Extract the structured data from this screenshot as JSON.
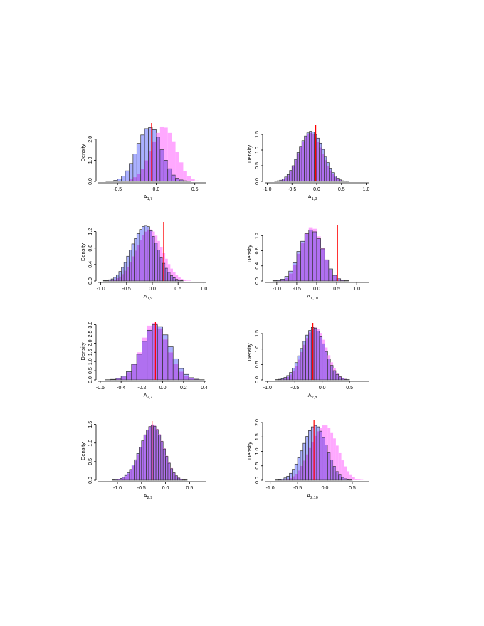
{
  "colors": {
    "blue": "#aab0ff",
    "pink": "#ffa8ff",
    "overlap": "#b070f0",
    "truth": "#ff0000",
    "axis": "#000000",
    "edge": "#333333"
  },
  "chart_data": [
    {
      "type": "bar",
      "xlabel": "A",
      "xlabel_sub": "1,7",
      "ylabel": "Density",
      "xlim": [
        -0.75,
        0.65
      ],
      "ylim": [
        0,
        2.7
      ],
      "xticks": [
        -0.5,
        0.0,
        0.5
      ],
      "xtick_labels": [
        "-0.5",
        "0.0",
        "0.5"
      ],
      "yticks": [
        0.0,
        1.0,
        2.0
      ],
      "ytick_labels": [
        "0.0",
        "1.0",
        "2.0"
      ],
      "bin_width": 0.05,
      "bin_start": -0.65,
      "series": [
        {
          "color": "blue",
          "values": [
            0.01,
            0.02,
            0.05,
            0.12,
            0.25,
            0.5,
            0.85,
            1.3,
            1.8,
            2.2,
            2.5,
            2.55,
            2.45,
            2.1,
            1.5,
            1.0,
            0.6,
            0.3,
            0.15,
            0.07,
            0.03,
            0.01,
            0.0,
            0.0,
            0.0,
            0.0
          ]
        },
        {
          "color": "pink",
          "values": [
            0.0,
            0.0,
            0.0,
            0.0,
            0.02,
            0.04,
            0.1,
            0.2,
            0.35,
            0.6,
            1.0,
            1.45,
            1.9,
            2.3,
            2.6,
            2.55,
            2.3,
            1.9,
            1.4,
            0.9,
            0.5,
            0.25,
            0.1,
            0.04,
            0.01,
            0.0
          ]
        }
      ],
      "truth": -0.06
    },
    {
      "type": "bar",
      "xlabel": "A",
      "xlabel_sub": "1,8",
      "ylabel": "Density",
      "xlim": [
        -1.05,
        1.05
      ],
      "ylim": [
        0,
        1.75
      ],
      "xticks": [
        -1.0,
        -0.5,
        0.0,
        0.5,
        1.0
      ],
      "xtick_labels": [
        "-1.0",
        "-0.5",
        "0.0",
        "0.5",
        "1.0"
      ],
      "yticks": [
        0.0,
        0.5,
        1.0,
        1.5
      ],
      "ytick_labels": [
        "0.0",
        "0.5",
        "1.0",
        "1.5"
      ],
      "bin_width": 0.05,
      "bin_start": -0.85,
      "series": [
        {
          "color": "blue",
          "values": [
            0.01,
            0.02,
            0.04,
            0.08,
            0.14,
            0.22,
            0.35,
            0.5,
            0.7,
            0.92,
            1.12,
            1.3,
            1.45,
            1.55,
            1.6,
            1.58,
            1.5,
            1.38,
            1.22,
            1.02,
            0.8,
            0.6,
            0.42,
            0.28,
            0.17,
            0.1,
            0.05,
            0.02,
            0.01,
            0.01,
            0.0,
            0.0
          ]
        },
        {
          "color": "pink",
          "values": [
            0.01,
            0.02,
            0.03,
            0.06,
            0.12,
            0.2,
            0.32,
            0.48,
            0.68,
            0.9,
            1.1,
            1.28,
            1.42,
            1.52,
            1.55,
            1.5,
            1.4,
            1.25,
            1.08,
            0.88,
            0.68,
            0.5,
            0.35,
            0.23,
            0.14,
            0.08,
            0.04,
            0.02,
            0.01,
            0.0,
            0.0,
            0.0
          ]
        }
      ],
      "truth": -0.02
    },
    {
      "type": "bar",
      "xlabel": "A",
      "xlabel_sub": "1,9",
      "ylabel": "Density",
      "xlim": [
        -1.05,
        1.05
      ],
      "ylim": [
        0,
        1.4
      ],
      "xticks": [
        -1.0,
        -0.5,
        0.0,
        0.5,
        1.0
      ],
      "xtick_labels": [
        "-1.0",
        "-0.5",
        "0.0",
        "0.5",
        "1.0"
      ],
      "yticks": [
        0.0,
        0.4,
        0.8,
        1.2
      ],
      "ytick_labels": [
        "0.0",
        "0.4",
        "0.8",
        "1.2"
      ],
      "bin_width": 0.05,
      "bin_start": -0.95,
      "series": [
        {
          "color": "blue",
          "values": [
            0.01,
            0.01,
            0.03,
            0.05,
            0.09,
            0.15,
            0.23,
            0.33,
            0.45,
            0.6,
            0.75,
            0.9,
            1.03,
            1.15,
            1.25,
            1.32,
            1.35,
            1.32,
            1.22,
            1.08,
            0.92,
            0.75,
            0.58,
            0.43,
            0.31,
            0.21,
            0.13,
            0.08,
            0.04,
            0.02,
            0.01,
            0.0,
            0.0,
            0.0,
            0.0,
            0.0
          ]
        },
        {
          "color": "pink",
          "values": [
            0.0,
            0.0,
            0.01,
            0.02,
            0.04,
            0.07,
            0.11,
            0.17,
            0.25,
            0.35,
            0.47,
            0.6,
            0.74,
            0.88,
            1.0,
            1.12,
            1.2,
            1.25,
            1.25,
            1.2,
            1.1,
            0.97,
            0.83,
            0.68,
            0.54,
            0.41,
            0.3,
            0.21,
            0.14,
            0.09,
            0.05,
            0.03,
            0.01,
            0.01,
            0.0,
            0.0
          ]
        }
      ],
      "truth": 0.22
    },
    {
      "type": "bar",
      "xlabel": "A",
      "xlabel_sub": "1,10",
      "ylabel": "Density",
      "xlim": [
        -1.3,
        1.3
      ],
      "ylim": [
        0,
        1.45
      ],
      "xticks": [
        -1.0,
        -0.5,
        0.0,
        0.5,
        1.0
      ],
      "xtick_labels": [
        "-1.0",
        "-0.5",
        "0.0",
        "0.5",
        "1.0"
      ],
      "yticks": [
        0.0,
        0.4,
        0.8,
        1.2
      ],
      "ytick_labels": [
        "0.0",
        "0.4",
        "0.8",
        "1.2"
      ],
      "bin_width": 0.1,
      "bin_start": -1.1,
      "series": [
        {
          "color": "blue",
          "values": [
            0.01,
            0.02,
            0.05,
            0.12,
            0.26,
            0.48,
            0.78,
            1.05,
            1.25,
            1.35,
            1.3,
            1.12,
            0.85,
            0.56,
            0.32,
            0.15,
            0.06,
            0.02,
            0.01,
            0.0,
            0.0,
            0.0
          ]
        },
        {
          "color": "pink",
          "values": [
            0.0,
            0.01,
            0.03,
            0.08,
            0.2,
            0.42,
            0.72,
            1.02,
            1.28,
            1.42,
            1.38,
            1.18,
            0.88,
            0.56,
            0.3,
            0.14,
            0.05,
            0.02,
            0.01,
            0.0,
            0.0,
            0.0
          ]
        }
      ],
      "truth": 0.52
    },
    {
      "type": "bar",
      "xlabel": "A",
      "xlabel_sub": "2,7",
      "ylabel": "Density",
      "xlim": [
        -0.62,
        0.42
      ],
      "ylim": [
        0,
        3.1
      ],
      "xticks": [
        -0.6,
        -0.4,
        -0.2,
        0.0,
        0.2,
        0.4
      ],
      "xtick_labels": [
        "-0.6",
        "-0.4",
        "-0.2",
        "0.0",
        "0.2",
        "0.4"
      ],
      "yticks": [
        0.0,
        0.5,
        1.0,
        1.5,
        2.0,
        2.5,
        3.0
      ],
      "ytick_labels": [
        "0.0",
        "0.5",
        "1.0",
        "1.5",
        "2.0",
        "2.5",
        "3.0"
      ],
      "bin_width": 0.05,
      "bin_start": -0.55,
      "series": [
        {
          "color": "blue",
          "values": [
            0.01,
            0.03,
            0.08,
            0.2,
            0.45,
            0.85,
            1.4,
            2.1,
            2.7,
            3.0,
            2.9,
            2.45,
            1.8,
            1.15,
            0.62,
            0.3,
            0.12,
            0.04,
            0.01,
            0.0
          ]
        },
        {
          "color": "pink",
          "values": [
            0.0,
            0.02,
            0.06,
            0.17,
            0.42,
            0.85,
            1.5,
            2.3,
            2.95,
            3.1,
            2.8,
            2.2,
            1.5,
            0.88,
            0.45,
            0.2,
            0.08,
            0.03,
            0.01,
            0.0
          ]
        }
      ],
      "truth": -0.07
    },
    {
      "type": "bar",
      "xlabel": "A",
      "xlabel_sub": "2,8",
      "ylabel": "Density",
      "xlim": [
        -1.05,
        0.85
      ],
      "ylim": [
        0,
        1.8
      ],
      "xticks": [
        -1.0,
        -0.5,
        0.0,
        0.5
      ],
      "xtick_labels": [
        "-1.0",
        "-0.5",
        "0.0",
        "0.5"
      ],
      "yticks": [
        0.0,
        0.5,
        1.0,
        1.5
      ],
      "ytick_labels": [
        "0.0",
        "0.5",
        "1.0",
        "1.5"
      ],
      "bin_width": 0.05,
      "bin_start": -0.85,
      "series": [
        {
          "color": "blue",
          "values": [
            0.01,
            0.02,
            0.04,
            0.08,
            0.14,
            0.24,
            0.38,
            0.56,
            0.78,
            1.02,
            1.25,
            1.45,
            1.6,
            1.7,
            1.68,
            1.58,
            1.4,
            1.17,
            0.92,
            0.68,
            0.47,
            0.3,
            0.18,
            0.1,
            0.05,
            0.02,
            0.01,
            0.0,
            0.0,
            0.0
          ]
        },
        {
          "color": "pink",
          "values": [
            0.0,
            0.01,
            0.02,
            0.05,
            0.1,
            0.18,
            0.3,
            0.46,
            0.66,
            0.9,
            1.14,
            1.36,
            1.54,
            1.66,
            1.7,
            1.66,
            1.52,
            1.3,
            1.05,
            0.8,
            0.57,
            0.38,
            0.23,
            0.13,
            0.07,
            0.03,
            0.01,
            0.0,
            0.0,
            0.0
          ]
        }
      ],
      "truth": -0.17
    },
    {
      "type": "bar",
      "xlabel": "A",
      "xlabel_sub": "2,9",
      "ylabel": "Density",
      "xlim": [
        -1.4,
        0.85
      ],
      "ylim": [
        0,
        1.55
      ],
      "xticks": [
        -1.0,
        -0.5,
        0.0,
        0.5
      ],
      "xtick_labels": [
        "-1.0",
        "-0.5",
        "0.0",
        "0.5"
      ],
      "yticks": [
        0.0,
        0.5,
        1.0,
        1.5
      ],
      "ytick_labels": [
        "0.0",
        "0.5",
        "1.0",
        "1.5"
      ],
      "bin_width": 0.05,
      "bin_start": -1.1,
      "series": [
        {
          "color": "blue",
          "values": [
            0.01,
            0.02,
            0.03,
            0.05,
            0.08,
            0.13,
            0.2,
            0.29,
            0.41,
            0.55,
            0.72,
            0.89,
            1.06,
            1.22,
            1.35,
            1.44,
            1.48,
            1.45,
            1.36,
            1.22,
            1.04,
            0.84,
            0.64,
            0.46,
            0.31,
            0.2,
            0.12,
            0.06,
            0.03,
            0.01,
            0.01,
            0.0,
            0.0,
            0.0,
            0.0
          ]
        },
        {
          "color": "pink",
          "values": [
            0.0,
            0.01,
            0.02,
            0.04,
            0.07,
            0.11,
            0.18,
            0.27,
            0.39,
            0.53,
            0.7,
            0.88,
            1.06,
            1.22,
            1.36,
            1.45,
            1.5,
            1.47,
            1.38,
            1.24,
            1.06,
            0.86,
            0.66,
            0.48,
            0.33,
            0.21,
            0.13,
            0.07,
            0.04,
            0.02,
            0.01,
            0.0,
            0.0,
            0.0,
            0.0
          ]
        }
      ],
      "truth": -0.28
    },
    {
      "type": "bar",
      "xlabel": "A",
      "xlabel_sub": "2,10",
      "ylabel": "Density",
      "xlim": [
        -1.1,
        0.8
      ],
      "ylim": [
        0,
        2.05
      ],
      "xticks": [
        -1.0,
        -0.5,
        0.0,
        0.5
      ],
      "xtick_labels": [
        "-1.0",
        "-0.5",
        "0.0",
        "0.5"
      ],
      "yticks": [
        0.0,
        0.5,
        1.0,
        1.5,
        2.0
      ],
      "ytick_labels": [
        "0.0",
        "0.5",
        "1.0",
        "1.5",
        "2.0"
      ],
      "bin_width": 0.05,
      "bin_start": -0.9,
      "series": [
        {
          "color": "blue",
          "values": [
            0.01,
            0.02,
            0.04,
            0.08,
            0.14,
            0.24,
            0.38,
            0.56,
            0.78,
            1.02,
            1.28,
            1.52,
            1.72,
            1.85,
            1.9,
            1.85,
            1.7,
            1.48,
            1.22,
            0.95,
            0.7,
            0.48,
            0.3,
            0.18,
            0.1,
            0.05,
            0.02,
            0.01,
            0.0,
            0.0,
            0.0,
            0.0,
            0.0
          ]
        },
        {
          "color": "pink",
          "values": [
            0.0,
            0.0,
            0.01,
            0.02,
            0.04,
            0.08,
            0.14,
            0.22,
            0.34,
            0.5,
            0.68,
            0.9,
            1.12,
            1.34,
            1.54,
            1.7,
            1.82,
            1.9,
            1.9,
            1.82,
            1.66,
            1.45,
            1.2,
            0.94,
            0.69,
            0.48,
            0.31,
            0.18,
            0.1,
            0.05,
            0.02,
            0.01,
            0.0
          ]
        }
      ],
      "truth": -0.2
    }
  ]
}
